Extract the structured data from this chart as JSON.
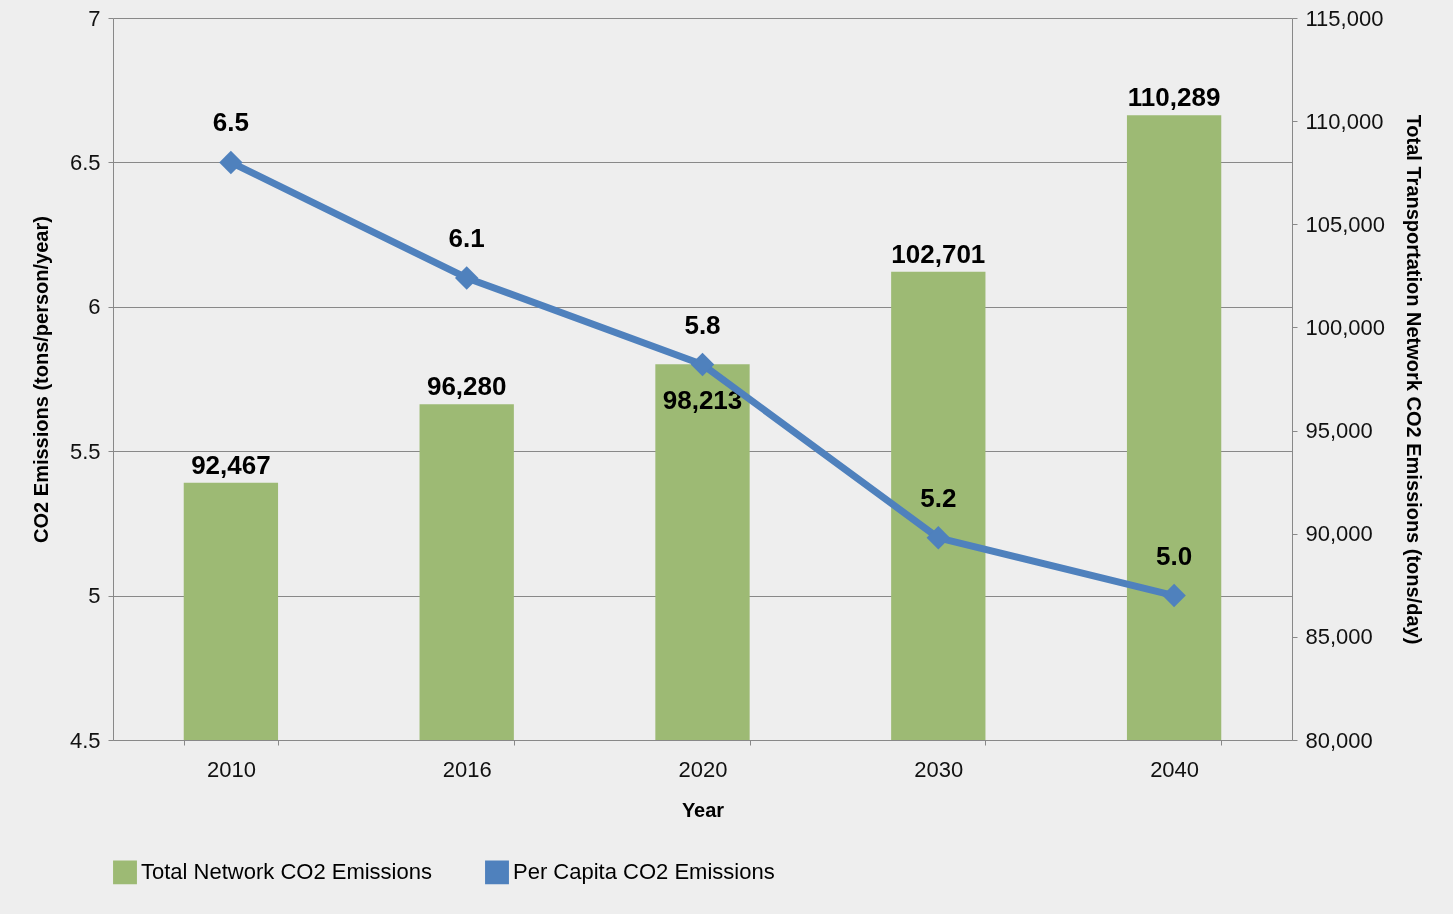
{
  "chart_data": {
    "type": "bar",
    "xlabel": "Year",
    "ylabel": "CO2 Emissions (tons/person/year)",
    "y2label": "Total Transportation Network CO2 Emissions (tons/day)",
    "categories": [
      "2010",
      "2016",
      "2020",
      "2030",
      "2040"
    ],
    "series": [
      {
        "name": "Total Network CO2 Emissions",
        "axis": "y2",
        "color": "#9dba74",
        "values": [
          92467,
          96280,
          98213,
          102701,
          110289
        ],
        "value_labels": [
          "92,467",
          "96,280",
          "98,213",
          "102,701",
          "110,289"
        ]
      },
      {
        "name": "Per Capita CO2 Emissions",
        "type": "line",
        "color": "#4f81bd",
        "marker": "diamond",
        "line_style": "solid",
        "values": [
          6.5,
          6.1,
          5.8,
          5.2,
          5.0
        ],
        "value_labels": [
          "6.5",
          "6.1",
          "5.8",
          "5.2",
          "5.0"
        ]
      }
    ],
    "ylim": [
      4.5,
      7
    ],
    "yticks": [
      4.5,
      5,
      5.5,
      6,
      6.5,
      7
    ],
    "y2lim": [
      80000,
      115000
    ],
    "y2ticks": [
      {
        "value": 80000,
        "label": "80,000"
      },
      {
        "value": 85000,
        "label": "85,000"
      },
      {
        "value": 90000,
        "label": "90,000"
      },
      {
        "value": 95000,
        "label": "95,000"
      },
      {
        "value": 100000,
        "label": "100,000"
      },
      {
        "value": 105000,
        "label": "105,000"
      },
      {
        "value": 110000,
        "label": "110,000"
      },
      {
        "value": 115000,
        "label": "115,000"
      }
    ],
    "grid": "y",
    "legend": "bottom"
  }
}
